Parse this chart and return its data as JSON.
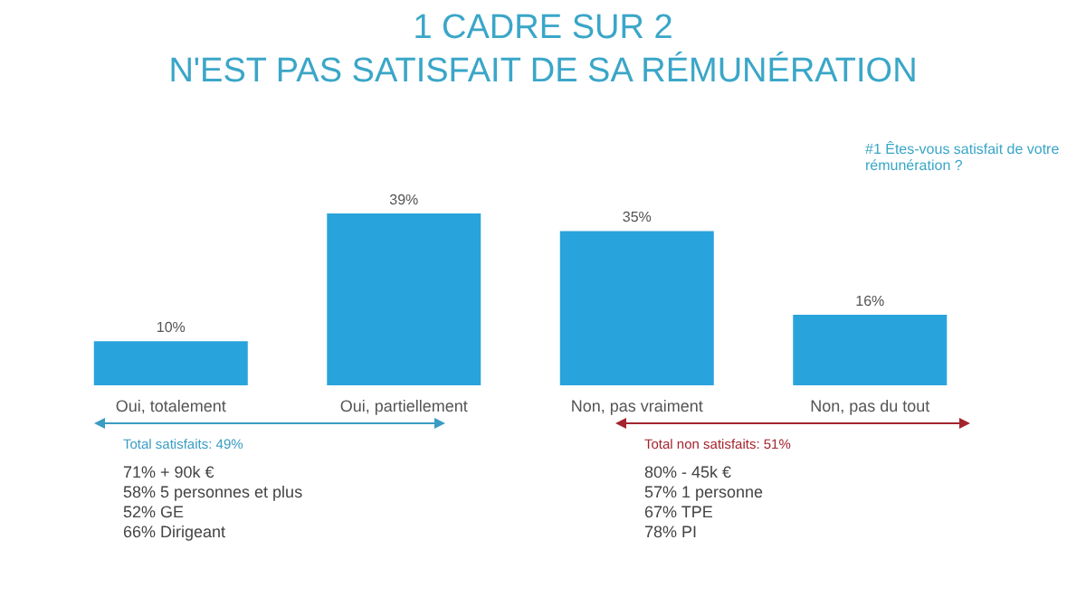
{
  "chart_data": {
    "type": "bar",
    "title": "1 CADRE SUR 2",
    "subtitle": "N'EST PAS SATISFAIT DE SA RÉMUNÉRATION",
    "categories": [
      "Oui, totalement",
      "Oui, partiellement",
      "Non, pas vraiment",
      "Non, pas du tout"
    ],
    "values": [
      10,
      39,
      35,
      16
    ],
    "color": "#29a3dc",
    "value_labels": [
      "10%",
      "39%",
      "35%",
      "16%"
    ],
    "annotations": [
      "#1 Êtes-vous satisfait de votre rémunération ?",
      "Total satisfaits: 49%",
      "71% + 90k €",
      "58% 5 personnes et plus",
      "52% GE",
      "66% Dirigeant",
      "Total non satisfaits: 51%",
      "80% - 45k €",
      "57% 1 personne",
      "67% TPE",
      "78% PI"
    ]
  }
}
